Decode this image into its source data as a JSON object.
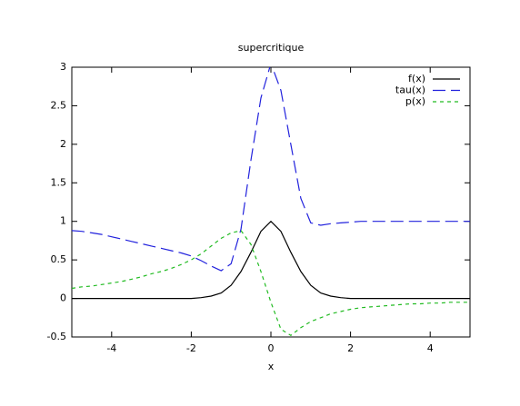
{
  "chart_data": {
    "type": "line",
    "title": "supercritique",
    "x_label": "x",
    "x": [
      -5,
      -4.75,
      -4.5,
      -4.25,
      -4,
      -3.75,
      -3.5,
      -3.25,
      -3,
      -2.75,
      -2.5,
      -2.25,
      -2,
      -1.75,
      -1.5,
      -1.25,
      -1,
      -0.75,
      -0.5,
      -0.25,
      0,
      0.25,
      0.5,
      0.75,
      1,
      1.25,
      1.5,
      1.75,
      2,
      2.25,
      2.5,
      2.75,
      3,
      3.25,
      3.5,
      3.75,
      4,
      4.25,
      4.5,
      4.75,
      5
    ],
    "series": [
      {
        "name": "f(x)",
        "color": "#000000",
        "dash": "none",
        "values": [
          0,
          0,
          0,
          0,
          0,
          0,
          0,
          0,
          0,
          0,
          0,
          0,
          0,
          0.01,
          0.03,
          0.07,
          0.17,
          0.35,
          0.6,
          0.87,
          1,
          0.87,
          0.6,
          0.35,
          0.17,
          0.07,
          0.03,
          0.01,
          0,
          0,
          0,
          0,
          0,
          0,
          0,
          0,
          0,
          0,
          0,
          0,
          0
        ]
      },
      {
        "name": "tau(x)",
        "color": "#2222dd",
        "dash": "14 6",
        "values": [
          0.88,
          0.87,
          0.85,
          0.83,
          0.8,
          0.77,
          0.74,
          0.71,
          0.68,
          0.65,
          0.62,
          0.59,
          0.55,
          0.49,
          0.42,
          0.36,
          0.45,
          0.9,
          1.8,
          2.6,
          3.05,
          2.7,
          2,
          1.3,
          0.98,
          0.95,
          0.97,
          0.98,
          0.99,
          1,
          1,
          1,
          1,
          1,
          1,
          1,
          1,
          1,
          1,
          1,
          1
        ]
      },
      {
        "name": "p(x)",
        "color": "#22bb22",
        "dash": "4 4",
        "values": [
          0.13,
          0.15,
          0.16,
          0.18,
          0.2,
          0.22,
          0.25,
          0.28,
          0.32,
          0.35,
          0.39,
          0.44,
          0.5,
          0.58,
          0.68,
          0.78,
          0.85,
          0.88,
          0.7,
          0.35,
          -0.05,
          -0.4,
          -0.48,
          -0.38,
          -0.3,
          -0.25,
          -0.2,
          -0.17,
          -0.14,
          -0.12,
          -0.11,
          -0.1,
          -0.09,
          -0.08,
          -0.07,
          -0.07,
          -0.06,
          -0.06,
          -0.05,
          -0.05,
          -0.05
        ]
      }
    ],
    "xlim": [
      -5,
      5
    ],
    "xticks": [
      -4,
      -2,
      0,
      2,
      4
    ],
    "ylim": [
      -0.5,
      3
    ],
    "yticks": [
      -0.5,
      0,
      0.5,
      1,
      1.5,
      2,
      2.5,
      3
    ],
    "legend": "top-right"
  }
}
